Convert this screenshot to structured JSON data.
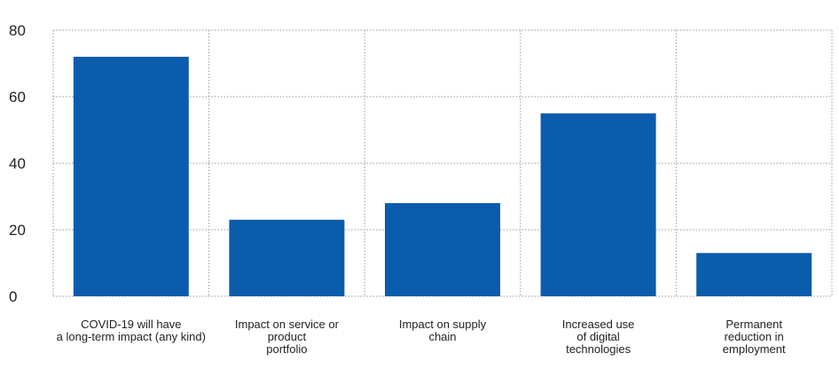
{
  "chart_data": {
    "type": "bar",
    "categories": [
      [
        "COVID-19 will have",
        "a long-term impact (any kind)"
      ],
      [
        "Impact on service or",
        "product",
        "portfolio"
      ],
      [
        "Impact on supply",
        "chain"
      ],
      [
        "Increased use",
        "of digital",
        "technologies"
      ],
      [
        "Permanent",
        "reduction in",
        "employment"
      ]
    ],
    "values": [
      72,
      23,
      28,
      55,
      13
    ],
    "ylim": [
      0,
      80
    ],
    "yticks": [
      "0",
      "20",
      "40",
      "60",
      "80"
    ],
    "grid": true,
    "grid_style": "dotted",
    "title": "",
    "xlabel": "",
    "ylabel": "",
    "colors": {
      "bar": "#0b5cad",
      "grid": "#9a9a9a",
      "text": "#222222"
    }
  }
}
